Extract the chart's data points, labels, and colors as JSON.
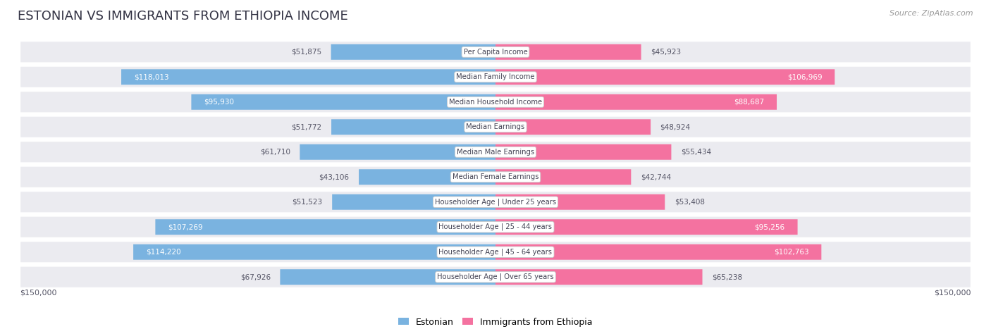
{
  "title": "ESTONIAN VS IMMIGRANTS FROM ETHIOPIA INCOME",
  "source": "Source: ZipAtlas.com",
  "categories": [
    "Per Capita Income",
    "Median Family Income",
    "Median Household Income",
    "Median Earnings",
    "Median Male Earnings",
    "Median Female Earnings",
    "Householder Age | Under 25 years",
    "Householder Age | 25 - 44 years",
    "Householder Age | 45 - 64 years",
    "Householder Age | Over 65 years"
  ],
  "estonian": [
    51875,
    118013,
    95930,
    51772,
    61710,
    43106,
    51523,
    107269,
    114220,
    67926
  ],
  "ethiopia": [
    45923,
    106969,
    88687,
    48924,
    55434,
    42744,
    53408,
    95256,
    102763,
    65238
  ],
  "max_value": 150000,
  "color_estonian": "#7ab3e0",
  "color_ethiopia": "#f472a0",
  "row_bg_color": "#ebebf0",
  "label_text_color": "#444455",
  "value_text_color_outside": "#555566",
  "legend_estonian": "Estonian",
  "legend_ethiopia": "Immigrants from Ethiopia",
  "xlabel_left": "$150,000",
  "xlabel_right": "$150,000",
  "inside_threshold": 75000
}
